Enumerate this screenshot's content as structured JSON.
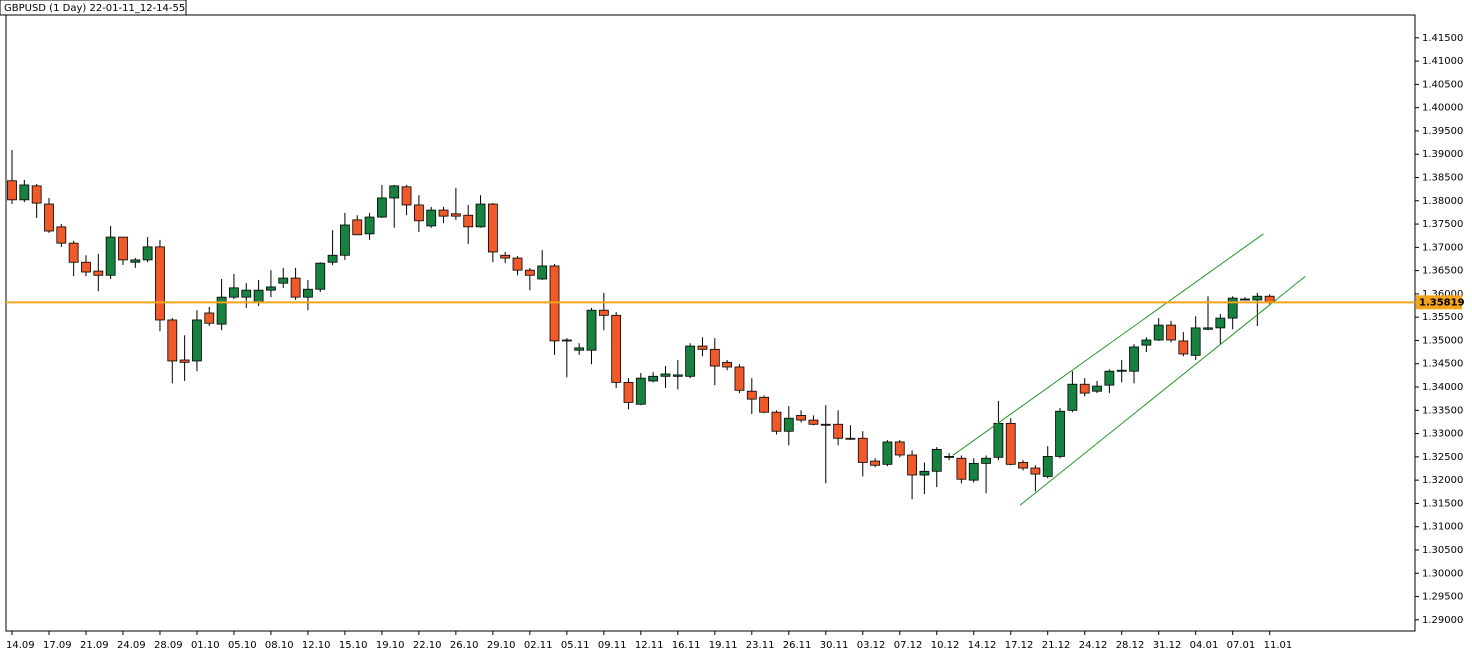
{
  "chart_data": {
    "type": "candlestick",
    "title": "GBPUSD (1 Day) 22-01-11_12-14-55",
    "categories": [
      "14.09",
      null,
      null,
      "17.09",
      null,
      null,
      "21.09",
      null,
      null,
      "24.09",
      null,
      null,
      "28.09",
      null,
      null,
      "01.10",
      null,
      null,
      "05.10",
      null,
      null,
      "08.10",
      null,
      null,
      "12.10",
      null,
      null,
      "15.10",
      null,
      null,
      "19.10",
      null,
      null,
      "22.10",
      null,
      null,
      "26.10",
      null,
      null,
      "29.10",
      null,
      null,
      "02.11",
      null,
      null,
      "05.11",
      null,
      null,
      "09.11",
      null,
      null,
      "12.11",
      null,
      null,
      "16.11",
      null,
      null,
      "19.11",
      null,
      null,
      "23.11",
      null,
      null,
      "26.11",
      null,
      null,
      "30.11",
      null,
      null,
      "03.12",
      null,
      null,
      "07.12",
      null,
      null,
      "10.12",
      null,
      null,
      "14.12",
      null,
      null,
      "17.12",
      null,
      null,
      "21.12",
      null,
      null,
      "24.12",
      null,
      null,
      "28.12",
      null,
      null,
      "31.12",
      null,
      null,
      "04.01",
      null,
      null,
      "07.01",
      null,
      null,
      "11.01"
    ],
    "open": [
      1.3843,
      1.3802,
      1.3832,
      1.3793,
      1.3744,
      1.3709,
      1.3668,
      1.3649,
      1.364,
      1.3722,
      1.3668,
      1.3673,
      1.3701,
      1.3544,
      1.3458,
      1.3456,
      1.3559,
      1.3535,
      1.3593,
      1.3593,
      1.3582,
      1.3608,
      1.3623,
      1.3634,
      1.3593,
      1.361,
      1.3668,
      1.3683,
      1.3759,
      1.3729,
      1.3765,
      1.3806,
      1.383,
      1.3791,
      1.3746,
      1.378,
      1.3772,
      1.3769,
      1.3744,
      1.3793,
      1.3683,
      1.3677,
      1.3651,
      1.3632,
      1.366,
      1.3501,
      1.3479,
      1.3479,
      1.3565,
      1.3554,
      1.341,
      1.3363,
      1.3413,
      1.3423,
      1.3423,
      1.3423,
      1.3488,
      1.3481,
      1.3453,
      1.3443,
      1.3391,
      1.3378,
      1.3346,
      1.3305,
      1.3339,
      1.3329,
      1.332,
      1.332,
      1.329,
      1.329,
      1.3241,
      1.3234,
      1.3282,
      1.3254,
      1.3211,
      1.3219,
      1.3249,
      1.3247,
      1.32,
      1.3236,
      1.3249,
      1.3322,
      1.3238,
      1.3226,
      1.3208,
      1.3251,
      1.335,
      1.3406,
      1.3391,
      1.3404,
      1.3434,
      1.3434,
      1.349,
      1.3501,
      1.3533,
      1.3499,
      1.3468,
      1.3524,
      1.3527,
      1.3548,
      1.3587,
      1.3587,
      1.3595
    ],
    "high": [
      1.3909,
      1.3845,
      1.3836,
      1.3806,
      1.375,
      1.3714,
      1.3683,
      1.3686,
      1.3746,
      1.3722,
      1.3677,
      1.3722,
      1.3716,
      1.3548,
      1.3511,
      1.3565,
      1.3572,
      1.3632,
      1.3643,
      1.3623,
      1.363,
      1.3651,
      1.3656,
      1.3656,
      1.363,
      1.3668,
      1.3737,
      1.3774,
      1.3769,
      1.3774,
      1.3834,
      1.3834,
      1.3834,
      1.3812,
      1.3787,
      1.3787,
      1.3828,
      1.3791,
      1.3812,
      1.3795,
      1.369,
      1.3681,
      1.3656,
      1.3694,
      1.3664,
      1.3505,
      1.3494,
      1.357,
      1.3602,
      1.3561,
      1.3419,
      1.343,
      1.3432,
      1.3445,
      1.3458,
      1.3494,
      1.3507,
      1.3505,
      1.3458,
      1.3449,
      1.3419,
      1.3382,
      1.335,
      1.3359,
      1.335,
      1.3339,
      1.3361,
      1.335,
      1.3318,
      1.3305,
      1.3247,
      1.3286,
      1.3286,
      1.3264,
      1.3238,
      1.3271,
      1.3258,
      1.3253,
      1.3247,
      1.3253,
      1.337,
      1.3333,
      1.3243,
      1.3232,
      1.3273,
      1.3355,
      1.3434,
      1.3419,
      1.3413,
      1.3438,
      1.3458,
      1.3492,
      1.3507,
      1.3548,
      1.3542,
      1.3518,
      1.3552,
      1.3595,
      1.3557,
      1.3595,
      1.3593,
      1.3602,
      1.3599
    ],
    "low": [
      1.3793,
      1.3797,
      1.3763,
      1.3731,
      1.3701,
      1.3638,
      1.3638,
      1.3606,
      1.3632,
      1.3662,
      1.3656,
      1.3668,
      1.352,
      1.3408,
      1.3413,
      1.3434,
      1.3531,
      1.3522,
      1.3589,
      1.357,
      1.3574,
      1.3593,
      1.3613,
      1.3587,
      1.3565,
      1.3604,
      1.3662,
      1.3673,
      1.3727,
      1.3716,
      1.3763,
      1.3742,
      1.3769,
      1.3733,
      1.3742,
      1.3752,
      1.3759,
      1.3707,
      1.3742,
      1.3668,
      1.3666,
      1.364,
      1.3608,
      1.363,
      1.3469,
      1.3421,
      1.3469,
      1.3449,
      1.3522,
      1.3398,
      1.3352,
      1.3361,
      1.341,
      1.3398,
      1.3395,
      1.3419,
      1.3466,
      1.3404,
      1.3436,
      1.3387,
      1.3342,
      1.3344,
      1.3298,
      1.3275,
      1.3324,
      1.3318,
      1.3193,
      1.3275,
      1.3286,
      1.3208,
      1.3228,
      1.323,
      1.3249,
      1.3159,
      1.317,
      1.3185,
      1.3243,
      1.3193,
      1.3195,
      1.3172,
      1.3243,
      1.3232,
      1.3221,
      1.3176,
      1.3204,
      1.3247,
      1.3346,
      1.338,
      1.3387,
      1.3387,
      1.341,
      1.3408,
      1.3475,
      1.3499,
      1.3496,
      1.3466,
      1.3458,
      1.3522,
      1.3492,
      1.3524,
      1.3587,
      1.3531,
      1.3578
    ],
    "close": [
      1.3802,
      1.3834,
      1.3795,
      1.3735,
      1.3709,
      1.3668,
      1.3647,
      1.364,
      1.3722,
      1.3673,
      1.3673,
      1.3701,
      1.3544,
      1.3456,
      1.3453,
      1.3544,
      1.3537,
      1.3593,
      1.3613,
      1.3608,
      1.3608,
      1.3615,
      1.3634,
      1.3593,
      1.361,
      1.3666,
      1.3683,
      1.3748,
      1.3727,
      1.3765,
      1.3806,
      1.3832,
      1.3791,
      1.3757,
      1.378,
      1.3767,
      1.3767,
      1.3744,
      1.3793,
      1.369,
      1.3677,
      1.3651,
      1.364,
      1.366,
      1.3499,
      1.3499,
      1.3484,
      1.3565,
      1.3554,
      1.341,
      1.3367,
      1.3419,
      1.3423,
      1.3428,
      1.3426,
      1.3488,
      1.3481,
      1.3445,
      1.3443,
      1.3393,
      1.3374,
      1.3346,
      1.3305,
      1.3333,
      1.3329,
      1.332,
      1.3318,
      1.329,
      1.3288,
      1.3238,
      1.3232,
      1.3282,
      1.3254,
      1.3211,
      1.3219,
      1.3266,
      1.3251,
      1.3202,
      1.3236,
      1.3247,
      1.3322,
      1.3234,
      1.3226,
      1.3213,
      1.3251,
      1.3348,
      1.3406,
      1.3387,
      1.3402,
      1.3434,
      1.3436,
      1.3486,
      1.3501,
      1.3533,
      1.3501,
      1.3471,
      1.3527,
      1.3527,
      1.3548,
      1.3591,
      1.3589,
      1.3595,
      1.3582
    ],
    "up_color": "#17813f",
    "down_color": "#f05a2a",
    "last_price": 1.35819,
    "last_price_color": "#f2a51a",
    "trendlines": [
      {
        "x": [
          76.3,
          101.5
        ],
        "y": [
          1.3253,
          1.3729
        ]
      },
      {
        "x": [
          81.75,
          104.9
        ],
        "y": [
          1.3146,
          1.3638
        ]
      }
    ],
    "trendline_color": "#1f9a2a",
    "ylim": [
      1.2876,
      1.4199
    ],
    "yticks": [
      {
        "value": 1.29,
        "label": "1.29000"
      },
      {
        "value": 1.295,
        "label": "1.29500"
      },
      {
        "value": 1.3,
        "label": "1.30000"
      },
      {
        "value": 1.305,
        "label": "1.30500"
      },
      {
        "value": 1.31,
        "label": "1.31000"
      },
      {
        "value": 1.315,
        "label": "1.31500"
      },
      {
        "value": 1.32,
        "label": "1.32000"
      },
      {
        "value": 1.325,
        "label": "1.32500"
      },
      {
        "value": 1.33,
        "label": "1.33000"
      },
      {
        "value": 1.335,
        "label": "1.33500"
      },
      {
        "value": 1.34,
        "label": "1.34000"
      },
      {
        "value": 1.345,
        "label": "1.34500"
      },
      {
        "value": 1.35,
        "label": "1.35000"
      },
      {
        "value": 1.355,
        "label": "1.35500"
      },
      {
        "value": 1.36,
        "label": "1.36000"
      },
      {
        "value": 1.365,
        "label": "1.36500"
      },
      {
        "value": 1.37,
        "label": "1.37000"
      },
      {
        "value": 1.375,
        "label": "1.37500"
      },
      {
        "value": 1.38,
        "label": "1.38000"
      },
      {
        "value": 1.385,
        "label": "1.38500"
      },
      {
        "value": 1.39,
        "label": "1.39000"
      },
      {
        "value": 1.395,
        "label": "1.39500"
      },
      {
        "value": 1.4,
        "label": "1.40000"
      },
      {
        "value": 1.405,
        "label": "1.40500"
      },
      {
        "value": 1.41,
        "label": "1.41000"
      },
      {
        "value": 1.415,
        "label": "1.41500"
      }
    ]
  }
}
